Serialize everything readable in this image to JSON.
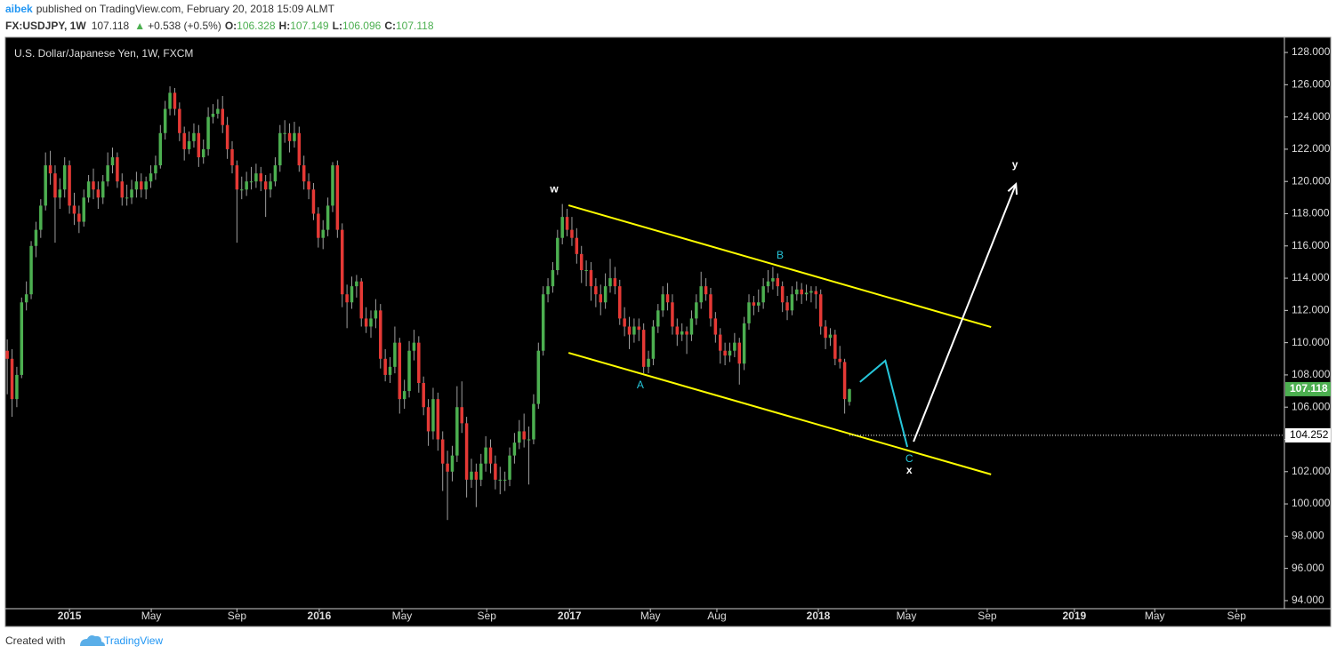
{
  "header": {
    "author": "aibek",
    "published": "published on TradingView.com, February 20, 2018 15:09 ALMT",
    "symbol": "FX:USDJPY, 1W",
    "change_arrow": "▲",
    "change": "+0.538 (+0.5%)",
    "o": "O:",
    "h": "H:",
    "l": "L:",
    "c": "C:"
  },
  "chart_data": {
    "type": "candlestick",
    "title": "U.S. Dollar/Japanese Yen, 1W, FXCM",
    "up_color": "#4caf50",
    "down_color": "#e53935",
    "candles": [
      [
        109.5,
        110.2,
        106.8,
        109
      ],
      [
        109,
        109.6,
        105.4,
        106.5
      ],
      [
        106.5,
        108.5,
        106,
        108
      ],
      [
        108,
        112.8,
        107.8,
        112.5
      ],
      [
        112.5,
        113.8,
        112,
        113
      ],
      [
        113,
        116.3,
        112.7,
        116
      ],
      [
        116,
        117.5,
        115.3,
        117
      ],
      [
        117,
        118.9,
        116.5,
        118.5
      ],
      [
        118.5,
        121.8,
        118.2,
        121
      ],
      [
        121,
        121.9,
        119.8,
        120.5
      ],
      [
        120.5,
        121,
        116.2,
        119
      ],
      [
        119,
        120.2,
        118.3,
        119.5
      ],
      [
        119.5,
        121.5,
        119,
        121
      ],
      [
        121,
        121.3,
        118,
        118.5
      ],
      [
        118.5,
        119.3,
        117.3,
        118
      ],
      [
        118,
        118.5,
        116.8,
        117.5
      ],
      [
        117.5,
        119.5,
        117.2,
        119
      ],
      [
        119,
        120.4,
        118.7,
        120
      ],
      [
        120,
        120.8,
        118.9,
        119.5
      ],
      [
        119.5,
        120,
        118.3,
        119
      ],
      [
        119,
        120.4,
        118.6,
        120
      ],
      [
        120,
        121.8,
        119.7,
        121
      ],
      [
        121,
        122.1,
        120.5,
        121.5
      ],
      [
        121.5,
        121.8,
        119.6,
        120
      ],
      [
        120,
        120.5,
        118.5,
        119
      ],
      [
        119,
        119.8,
        118.5,
        119
      ],
      [
        119,
        120.1,
        118.6,
        119.5
      ],
      [
        119.5,
        120.6,
        119,
        120
      ],
      [
        120,
        120.5,
        119,
        119.5
      ],
      [
        119.5,
        120.3,
        118.9,
        120
      ],
      [
        120,
        121,
        119.6,
        120.5
      ],
      [
        120.5,
        121.6,
        120.1,
        121
      ],
      [
        121,
        123.5,
        120.8,
        123
      ],
      [
        123,
        125,
        122.6,
        124.5
      ],
      [
        124.5,
        125.9,
        124.1,
        125.5
      ],
      [
        125.5,
        125.8,
        124.1,
        124.5
      ],
      [
        124.5,
        124.9,
        122.5,
        123
      ],
      [
        123,
        123.4,
        121.3,
        122
      ],
      [
        122,
        123.1,
        121.7,
        122.5
      ],
      [
        122.5,
        123.6,
        122.1,
        123
      ],
      [
        123,
        123.5,
        120.9,
        121.5
      ],
      [
        121.5,
        122.6,
        121.1,
        122
      ],
      [
        122,
        124.6,
        121.6,
        124
      ],
      [
        124,
        124.8,
        123.6,
        124.2
      ],
      [
        124.2,
        125.1,
        123.9,
        124.5
      ],
      [
        124.5,
        125.3,
        123,
        123.5
      ],
      [
        123.5,
        124,
        121.4,
        122
      ],
      [
        122,
        122.5,
        120.5,
        121
      ],
      [
        121,
        121.3,
        116.2,
        119.5
      ],
      [
        119.5,
        120.3,
        118.9,
        119.5
      ],
      [
        119.5,
        120.6,
        119.1,
        120
      ],
      [
        120,
        120.9,
        119.5,
        120
      ],
      [
        120,
        121.1,
        119.6,
        120.5
      ],
      [
        120.5,
        120.9,
        119.4,
        120
      ],
      [
        120,
        120.4,
        117.8,
        119.5
      ],
      [
        119.5,
        120.5,
        119,
        120
      ],
      [
        120,
        121.5,
        119.7,
        121
      ],
      [
        121,
        123.5,
        120.6,
        123
      ],
      [
        123,
        123.8,
        122.4,
        123
      ],
      [
        123,
        123.6,
        121.8,
        122.5
      ],
      [
        122.5,
        123.7,
        122.1,
        123
      ],
      [
        123,
        123.4,
        120.6,
        121
      ],
      [
        121,
        121.6,
        119.5,
        120
      ],
      [
        120,
        120.5,
        118.9,
        119.5
      ],
      [
        119.5,
        119.9,
        117.6,
        118
      ],
      [
        118,
        118.4,
        115.9,
        116.5
      ],
      [
        116.5,
        117.6,
        115.8,
        117
      ],
      [
        117,
        119,
        116.6,
        118.5
      ],
      [
        118.5,
        121.2,
        118.1,
        121
      ],
      [
        121,
        121.3,
        116.5,
        117
      ],
      [
        117,
        117.4,
        112.2,
        113
      ],
      [
        113,
        113.6,
        110.9,
        112.5
      ],
      [
        112.5,
        114.1,
        112.1,
        113.5
      ],
      [
        113.5,
        114.2,
        112.8,
        113.8
      ],
      [
        113.8,
        114,
        111,
        111.5
      ],
      [
        111.5,
        112.2,
        110.6,
        111
      ],
      [
        111,
        112,
        110.3,
        111.5
      ],
      [
        111.5,
        112.7,
        110.9,
        112
      ],
      [
        112,
        112.4,
        108.4,
        109
      ],
      [
        109,
        109.6,
        107.6,
        108
      ],
      [
        108,
        109.1,
        107.5,
        108.5
      ],
      [
        108.5,
        111,
        108.1,
        110
      ],
      [
        110,
        110.3,
        105.6,
        106.5
      ],
      [
        106.5,
        107.7,
        105.9,
        107
      ],
      [
        107,
        110.1,
        106.6,
        109.5
      ],
      [
        109.5,
        110.8,
        108.9,
        110
      ],
      [
        110,
        110.4,
        106.9,
        107.5
      ],
      [
        107.5,
        107.9,
        105.5,
        106
      ],
      [
        106,
        106.5,
        103.6,
        104.5
      ],
      [
        104.5,
        107.2,
        104,
        106.5
      ],
      [
        106.5,
        106.9,
        103.3,
        104
      ],
      [
        104,
        104.5,
        100.8,
        102.5
      ],
      [
        102.5,
        103.3,
        99,
        102
      ],
      [
        102,
        103.6,
        101.4,
        103
      ],
      [
        103,
        107.3,
        102.6,
        106
      ],
      [
        106,
        107.6,
        104.4,
        105
      ],
      [
        105,
        105.4,
        100.4,
        101.5
      ],
      [
        101.5,
        102.8,
        101,
        102
      ],
      [
        102,
        102.5,
        99.8,
        101.5
      ],
      [
        101.5,
        103.1,
        101.1,
        102.5
      ],
      [
        102.5,
        104.2,
        102,
        103.5
      ],
      [
        103.5,
        104,
        101.9,
        102.5
      ],
      [
        102.5,
        103,
        100.9,
        101.5
      ],
      [
        101.5,
        102.3,
        100.6,
        101.5
      ],
      [
        101.5,
        102,
        100.8,
        101.5
      ],
      [
        101.5,
        103.5,
        101.1,
        103
      ],
      [
        103,
        104.4,
        102.5,
        103.8
      ],
      [
        103.8,
        105.2,
        103.4,
        104.5
      ],
      [
        104.5,
        105.6,
        103.5,
        104
      ],
      [
        104,
        104.8,
        101.2,
        104
      ],
      [
        104,
        106.8,
        103.7,
        106.2
      ],
      [
        106.2,
        110,
        105.9,
        109.5
      ],
      [
        109.5,
        113.5,
        109.2,
        113
      ],
      [
        113,
        114,
        112.5,
        113.5
      ],
      [
        113.5,
        115,
        113.1,
        114.5
      ],
      [
        114.5,
        117,
        114.2,
        116.5
      ],
      [
        116.5,
        118.6,
        116.1,
        117.8
      ],
      [
        117.8,
        118.3,
        116.6,
        117
      ],
      [
        117,
        117.8,
        116,
        116.5
      ],
      [
        116.5,
        117.1,
        114.9,
        115.5
      ],
      [
        115.5,
        116,
        113.7,
        114.5
      ],
      [
        114.5,
        115.1,
        113.5,
        114.5
      ],
      [
        114.5,
        115,
        112.6,
        113.5
      ],
      [
        113.5,
        114,
        112.2,
        113
      ],
      [
        113,
        113.6,
        111.7,
        112.5
      ],
      [
        112.5,
        114.3,
        112.1,
        113.5
      ],
      [
        113.5,
        115.2,
        113.1,
        114
      ],
      [
        114,
        114.7,
        113,
        113.5
      ],
      [
        113.5,
        113.9,
        111.1,
        111.5
      ],
      [
        111.5,
        112.2,
        110.4,
        111
      ],
      [
        111,
        111.6,
        109.6,
        110.5
      ],
      [
        110.5,
        111.5,
        110,
        111
      ],
      [
        111,
        111.5,
        110.1,
        110.8
      ],
      [
        110.8,
        111.2,
        108.1,
        108.5
      ],
      [
        108.5,
        109.5,
        108.1,
        109
      ],
      [
        109,
        111.4,
        108.6,
        111
      ],
      [
        111,
        112.4,
        110.6,
        112
      ],
      [
        112,
        113.5,
        111.6,
        113
      ],
      [
        113,
        113.7,
        112,
        112.5
      ],
      [
        112.5,
        113,
        110.5,
        111
      ],
      [
        111,
        111.5,
        109.8,
        110.5
      ],
      [
        110.5,
        111.2,
        110.1,
        110.7
      ],
      [
        110.7,
        111,
        109.3,
        110.5
      ],
      [
        110.5,
        112,
        110.1,
        111.5
      ],
      [
        111.5,
        113,
        111.1,
        112.5
      ],
      [
        112.5,
        114.4,
        112.1,
        113.5
      ],
      [
        113.5,
        114,
        112.6,
        113
      ],
      [
        113,
        113.4,
        111,
        111.5
      ],
      [
        111.5,
        111.9,
        110,
        110.5
      ],
      [
        110.5,
        110.9,
        108.7,
        109.5
      ],
      [
        109.5,
        110,
        108.6,
        109.2
      ],
      [
        109.2,
        110,
        108.8,
        109.5
      ],
      [
        109.5,
        110.6,
        109.1,
        110
      ],
      [
        110,
        110.3,
        107.4,
        108.7
      ],
      [
        108.7,
        111.6,
        108.3,
        111.2
      ],
      [
        111.2,
        113,
        110.8,
        112.5
      ],
      [
        112.5,
        112.9,
        111.7,
        112.3
      ],
      [
        112.3,
        113.3,
        111.9,
        112.5
      ],
      [
        112.5,
        114,
        112.1,
        113.5
      ],
      [
        113.5,
        114.5,
        113.1,
        113.8
      ],
      [
        113.8,
        114.7,
        113.3,
        114
      ],
      [
        114,
        114.3,
        112.9,
        113.5
      ],
      [
        113.5,
        113.8,
        111.9,
        112.5
      ],
      [
        112.5,
        112.9,
        111.4,
        112
      ],
      [
        112,
        113.5,
        111.7,
        113
      ],
      [
        113,
        113.8,
        112.6,
        113.3
      ],
      [
        113.3,
        113.7,
        112.4,
        113
      ],
      [
        113,
        113.6,
        112.6,
        113.1
      ],
      [
        113.1,
        113.5,
        112.5,
        113.2
      ],
      [
        113.2,
        113.5,
        112.1,
        113
      ],
      [
        113,
        113.3,
        110.5,
        111
      ],
      [
        111,
        111.4,
        109.6,
        110.3
      ],
      [
        110.3,
        110.9,
        109.8,
        110.5
      ],
      [
        110.5,
        110.8,
        108.6,
        109
      ],
      [
        109,
        109.8,
        108.4,
        108.8
      ],
      [
        108.8,
        109,
        105.6,
        106.5
      ],
      [
        106.328,
        107.149,
        106.096,
        107.118
      ]
    ],
    "xlim": [
      -0.4,
      266.9
    ],
    "xticks": [
      {
        "value": 13.0,
        "label": "2015"
      },
      {
        "value": 30.1,
        "label": "May"
      },
      {
        "value": 48.0,
        "label": "Sep"
      },
      {
        "value": 65.2,
        "label": "2016"
      },
      {
        "value": 82.5,
        "label": "May"
      },
      {
        "value": 100.2,
        "label": "Sep"
      },
      {
        "value": 117.5,
        "label": "2017"
      },
      {
        "value": 134.4,
        "label": "May"
      },
      {
        "value": 148.3,
        "label": "Aug"
      },
      {
        "value": 169.5,
        "label": "2018"
      },
      {
        "value": 187.9,
        "label": "May"
      },
      {
        "value": 204.8,
        "label": "Sep"
      },
      {
        "value": 223.0,
        "label": "2019"
      },
      {
        "value": 239.8,
        "label": "May"
      },
      {
        "value": 256.9,
        "label": "Sep"
      }
    ],
    "ylim": [
      93.5,
      128.94
    ],
    "yticks": [
      {
        "value": 94,
        "label": "94.000"
      },
      {
        "value": 96,
        "label": "96.000"
      },
      {
        "value": 98,
        "label": "98.000"
      },
      {
        "value": 100,
        "label": "100.000"
      },
      {
        "value": 102,
        "label": "102.000"
      },
      {
        "value": 104,
        "label": "104.000"
      },
      {
        "value": 106,
        "label": "106.000"
      },
      {
        "value": 108,
        "label": "108.000"
      },
      {
        "value": 110,
        "label": "110.000"
      },
      {
        "value": 112,
        "label": "112.000"
      },
      {
        "value": 114,
        "label": "114.000"
      },
      {
        "value": 116,
        "label": "116.000"
      },
      {
        "value": 118,
        "label": "118.000"
      },
      {
        "value": 120,
        "label": "120.000"
      },
      {
        "value": 122,
        "label": "122.000"
      },
      {
        "value": 124,
        "label": "124.000"
      },
      {
        "value": 126,
        "label": "126.000"
      },
      {
        "value": 128,
        "label": "128.000"
      }
    ],
    "grid": false,
    "price_line": 104.252,
    "lines": [
      {
        "color": "#ffff00",
        "arrow": false,
        "points": [
          [
            117.3,
            118.52
          ],
          [
            205.6,
            110.97
          ]
        ]
      },
      {
        "color": "#ffff00",
        "arrow": false,
        "points": [
          [
            117.3,
            109.37
          ],
          [
            205.6,
            101.83
          ]
        ]
      },
      {
        "color": "#26c6da",
        "arrow": false,
        "points": [
          [
            178.2,
            107.56
          ],
          [
            183.5,
            108.88
          ],
          [
            188.1,
            103.53
          ]
        ]
      },
      {
        "color": "#ffffff",
        "arrow": true,
        "points": [
          [
            189.4,
            103.86
          ],
          [
            210.8,
            119.84
          ]
        ]
      }
    ],
    "labels": [
      {
        "text": "w",
        "x": 114.3,
        "y": 119.51,
        "color": "#ffffff",
        "bold": true
      },
      {
        "text": "A",
        "x": 132.3,
        "y": 107.34,
        "color": "#26c6da",
        "bold": false
      },
      {
        "text": "B",
        "x": 161.5,
        "y": 115.38,
        "color": "#26c6da",
        "bold": false
      },
      {
        "text": "C",
        "x": 188.5,
        "y": 102.76,
        "color": "#26c6da",
        "bold": false
      },
      {
        "text": "x",
        "x": 188.5,
        "y": 102.05,
        "color": "#ffffff",
        "bold": true
      },
      {
        "text": "y",
        "x": 210.6,
        "y": 121.0,
        "color": "#ffffff",
        "bold": true
      }
    ]
  },
  "footer": {
    "created": "Created with",
    "brand": "TradingView"
  }
}
